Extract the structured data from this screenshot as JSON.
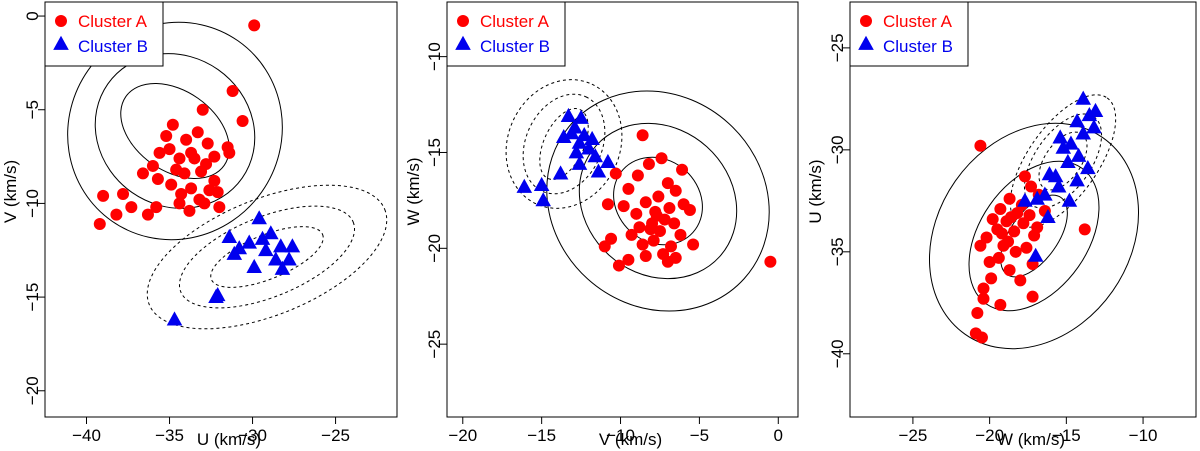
{
  "colors": {
    "cluster_a": "#ff0000",
    "cluster_b": "#0000ee",
    "ellipse": "#000000"
  },
  "chart_data": [
    {
      "type": "scatter",
      "xlabel": "U (km/s)",
      "ylabel": "V (km/s)",
      "xlim": [
        -42.5,
        -21.3
      ],
      "ylim": [
        -21.4,
        0.75
      ],
      "xticks": [
        -40,
        -35,
        -30,
        -25
      ],
      "yticks": [
        -20,
        -15,
        -10,
        -5,
        0
      ],
      "legend": {
        "position": "top-left",
        "entries": [
          "Cluster A",
          "Cluster B"
        ]
      },
      "series": [
        {
          "name": "Cluster A",
          "marker": "circle",
          "points": [
            [
              -29.9,
              -0.5
            ],
            [
              -31.2,
              -4.0
            ],
            [
              -33.0,
              -5.0
            ],
            [
              -34.8,
              -5.8
            ],
            [
              -30.6,
              -5.6
            ],
            [
              -33.3,
              -6.2
            ],
            [
              -35.2,
              -6.4
            ],
            [
              -32.7,
              -6.8
            ],
            [
              -34.0,
              -6.6
            ],
            [
              -33.7,
              -7.3
            ],
            [
              -34.4,
              -7.6
            ],
            [
              -35.6,
              -7.3
            ],
            [
              -32.3,
              -7.5
            ],
            [
              -31.5,
              -7.0
            ],
            [
              -32.8,
              -7.9
            ],
            [
              -36.0,
              -8.0
            ],
            [
              -34.1,
              -8.4
            ],
            [
              -33.1,
              -8.3
            ],
            [
              -35.7,
              -8.7
            ],
            [
              -36.6,
              -8.4
            ],
            [
              -34.6,
              -8.2
            ],
            [
              -33.5,
              -7.6
            ],
            [
              -32.3,
              -8.8
            ],
            [
              -34.9,
              -9.0
            ],
            [
              -33.7,
              -9.2
            ],
            [
              -32.6,
              -9.3
            ],
            [
              -32.1,
              -9.4
            ],
            [
              -33.2,
              -9.8
            ],
            [
              -32.9,
              -10.0
            ],
            [
              -34.4,
              -10.0
            ],
            [
              -33.8,
              -10.4
            ],
            [
              -35.8,
              -10.2
            ],
            [
              -37.3,
              -10.2
            ],
            [
              -36.3,
              -10.6
            ],
            [
              -37.8,
              -9.5
            ],
            [
              -39.0,
              -9.6
            ],
            [
              -38.2,
              -10.6
            ],
            [
              -39.2,
              -11.1
            ],
            [
              -31.4,
              -7.3
            ],
            [
              -35.0,
              -7.1
            ],
            [
              -32.0,
              -10.2
            ],
            [
              -34.3,
              -9.5
            ]
          ]
        },
        {
          "name": "Cluster B",
          "marker": "triangle",
          "points": [
            [
              -29.6,
              -10.8
            ],
            [
              -28.9,
              -11.6
            ],
            [
              -31.4,
              -11.8
            ],
            [
              -30.8,
              -12.4
            ],
            [
              -30.2,
              -12.1
            ],
            [
              -29.2,
              -12.5
            ],
            [
              -28.3,
              -12.3
            ],
            [
              -27.6,
              -12.3
            ],
            [
              -29.4,
              -11.9
            ],
            [
              -31.1,
              -12.7
            ],
            [
              -28.6,
              -13.0
            ],
            [
              -27.8,
              -13.0
            ],
            [
              -28.2,
              -13.5
            ],
            [
              -29.9,
              -13.4
            ],
            [
              -32.1,
              -14.9
            ],
            [
              -32.2,
              -15.0
            ],
            [
              -34.7,
              -16.2
            ]
          ]
        }
      ]
    },
    {
      "type": "scatter",
      "xlabel": "V (km/s)",
      "ylabel": "W (km/s)",
      "xlim": [
        -21.0,
        1.25
      ],
      "ylim": [
        -28.8,
        -7.15
      ],
      "xticks": [
        -20,
        -15,
        -10,
        -5,
        0
      ],
      "yticks": [
        -25,
        -20,
        -15,
        -10
      ],
      "legend": {
        "position": "top-left",
        "entries": [
          "Cluster A",
          "Cluster B"
        ]
      },
      "series": [
        {
          "name": "Cluster A",
          "marker": "circle",
          "points": [
            [
              -8.6,
              -14.1
            ],
            [
              -7.4,
              -15.3
            ],
            [
              -8.2,
              -15.6
            ],
            [
              -6.1,
              -15.9
            ],
            [
              -10.3,
              -16.1
            ],
            [
              -8.9,
              -16.2
            ],
            [
              -7.0,
              -16.6
            ],
            [
              -9.5,
              -16.9
            ],
            [
              -6.5,
              -17.0
            ],
            [
              -7.6,
              -17.3
            ],
            [
              -8.4,
              -17.6
            ],
            [
              -10.8,
              -17.7
            ],
            [
              -9.8,
              -17.8
            ],
            [
              -6.9,
              -17.9
            ],
            [
              -7.8,
              -18.1
            ],
            [
              -6.0,
              -17.7
            ],
            [
              -5.6,
              -18.0
            ],
            [
              -9.0,
              -18.2
            ],
            [
              -7.2,
              -18.5
            ],
            [
              -8.0,
              -18.7
            ],
            [
              -8.8,
              -18.9
            ],
            [
              -6.6,
              -18.7
            ],
            [
              -7.5,
              -19.1
            ],
            [
              -9.3,
              -19.3
            ],
            [
              -6.2,
              -19.3
            ],
            [
              -10.6,
              -19.5
            ],
            [
              -7.9,
              -19.6
            ],
            [
              -8.6,
              -19.8
            ],
            [
              -5.4,
              -19.8
            ],
            [
              -6.8,
              -19.9
            ],
            [
              -11.0,
              -19.9
            ],
            [
              -7.3,
              -20.3
            ],
            [
              -8.4,
              -20.4
            ],
            [
              -9.5,
              -20.6
            ],
            [
              -7.0,
              -20.7
            ],
            [
              -10.1,
              -20.9
            ],
            [
              -6.5,
              -20.5
            ],
            [
              -0.5,
              -20.7
            ],
            [
              -7.7,
              -18.3
            ],
            [
              -8.1,
              -19.0
            ]
          ]
        },
        {
          "name": "Cluster B",
          "marker": "triangle",
          "points": [
            [
              -13.3,
              -13.1
            ],
            [
              -12.5,
              -13.2
            ],
            [
              -12.9,
              -13.7
            ],
            [
              -13.1,
              -14.0
            ],
            [
              -12.3,
              -14.1
            ],
            [
              -11.8,
              -14.3
            ],
            [
              -12.6,
              -14.5
            ],
            [
              -13.6,
              -14.2
            ],
            [
              -12.0,
              -14.8
            ],
            [
              -12.8,
              -15.0
            ],
            [
              -11.6,
              -15.2
            ],
            [
              -10.8,
              -15.5
            ],
            [
              -12.6,
              -15.6
            ],
            [
              -11.4,
              -16.0
            ],
            [
              -13.8,
              -16.1
            ],
            [
              -16.1,
              -16.8
            ],
            [
              -15.0,
              -16.7
            ],
            [
              -14.9,
              -17.5
            ]
          ]
        }
      ]
    },
    {
      "type": "scatter",
      "xlabel": "W (km/s)",
      "ylabel": "U (km/s)",
      "xlim": [
        -29.1,
        -6.55
      ],
      "ylim": [
        -43.1,
        -22.75
      ],
      "xticks": [
        -25,
        -20,
        -15,
        -10
      ],
      "yticks": [
        -40,
        -35,
        -30,
        -25
      ],
      "legend": {
        "position": "top-left",
        "entries": [
          "Cluster A",
          "Cluster B"
        ]
      },
      "series": [
        {
          "name": "Cluster A",
          "marker": "circle",
          "points": [
            [
              -20.6,
              -29.8
            ],
            [
              -17.7,
              -31.3
            ],
            [
              -17.3,
              -31.8
            ],
            [
              -16.8,
              -32.2
            ],
            [
              -18.7,
              -32.4
            ],
            [
              -17.9,
              -32.7
            ],
            [
              -19.3,
              -32.9
            ],
            [
              -16.4,
              -33.0
            ],
            [
              -18.2,
              -33.1
            ],
            [
              -17.4,
              -33.2
            ],
            [
              -19.8,
              -33.4
            ],
            [
              -18.9,
              -33.5
            ],
            [
              -17.8,
              -33.6
            ],
            [
              -16.9,
              -33.8
            ],
            [
              -19.5,
              -33.9
            ],
            [
              -18.4,
              -34.0
            ],
            [
              -17.1,
              -34.2
            ],
            [
              -20.2,
              -34.3
            ],
            [
              -18.8,
              -34.5
            ],
            [
              -19.1,
              -34.7
            ],
            [
              -17.6,
              -34.8
            ],
            [
              -20.6,
              -34.7
            ],
            [
              -18.3,
              -35.0
            ],
            [
              -19.4,
              -35.3
            ],
            [
              -20.0,
              -35.5
            ],
            [
              -17.2,
              -35.6
            ],
            [
              -18.7,
              -35.9
            ],
            [
              -19.9,
              -36.3
            ],
            [
              -20.4,
              -36.8
            ],
            [
              -18.0,
              -36.4
            ],
            [
              -17.2,
              -37.2
            ],
            [
              -20.4,
              -37.3
            ],
            [
              -19.3,
              -37.6
            ],
            [
              -20.8,
              -38.0
            ],
            [
              -20.9,
              -39.0
            ],
            [
              -20.5,
              -39.2
            ],
            [
              -13.8,
              -33.9
            ],
            [
              -18.6,
              -33.3
            ],
            [
              -19.2,
              -34.1
            ]
          ]
        },
        {
          "name": "Cluster B",
          "marker": "triangle",
          "points": [
            [
              -13.9,
              -27.5
            ],
            [
              -13.1,
              -28.1
            ],
            [
              -13.5,
              -28.3
            ],
            [
              -14.3,
              -28.6
            ],
            [
              -13.2,
              -28.9
            ],
            [
              -13.9,
              -29.2
            ],
            [
              -15.4,
              -29.4
            ],
            [
              -14.7,
              -29.7
            ],
            [
              -15.2,
              -29.9
            ],
            [
              -14.2,
              -30.3
            ],
            [
              -14.9,
              -30.6
            ],
            [
              -13.6,
              -30.9
            ],
            [
              -15.7,
              -31.3
            ],
            [
              -14.3,
              -31.5
            ],
            [
              -16.1,
              -31.2
            ],
            [
              -15.5,
              -31.8
            ],
            [
              -16.4,
              -32.2
            ],
            [
              -14.8,
              -32.5
            ],
            [
              -16.9,
              -32.4
            ],
            [
              -17.7,
              -32.5
            ],
            [
              -16.2,
              -33.3
            ],
            [
              -17.0,
              -35.2
            ]
          ]
        }
      ]
    }
  ]
}
